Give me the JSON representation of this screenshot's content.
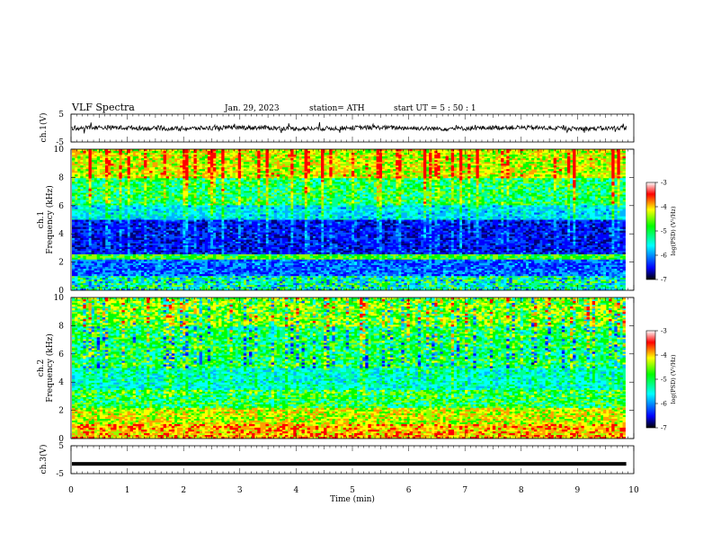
{
  "header": {
    "title": "VLF  Spectra",
    "date": "Jan. 29, 2023",
    "station": "station= ATH",
    "start": "start  UT  =   5  : 50 : 1"
  },
  "colors": {
    "low": "#000080",
    "mid_low": "#0000ff",
    "mid": "#00ffff",
    "mid_high": "#00ff00",
    "high": "#ffff00",
    "top": "#ff0000"
  },
  "chart_data": [
    {
      "type": "line",
      "name": "ch1-waveform",
      "ylabel": "ch.1(V)",
      "ylim": [
        -5,
        5
      ],
      "yticks": [
        "5",
        "-5"
      ],
      "xlim": [
        0,
        10
      ],
      "approx_level": 0,
      "approx_noise_amplitude": 1.5
    },
    {
      "type": "heatmap",
      "name": "ch1-spectrogram",
      "ylabel": "ch.1\nFrequency  (kHz)",
      "ylim": [
        0,
        10
      ],
      "yticks": [
        "0",
        "2",
        "4",
        "6",
        "8",
        "10"
      ],
      "xlim": [
        0,
        9.85
      ],
      "colorbar": {
        "label": "log(PSD) (V²/Hz)",
        "range": [
          -7,
          -3
        ],
        "ticks": [
          "-3",
          "-4",
          "-5",
          "-6",
          "-7"
        ]
      }
    },
    {
      "type": "heatmap",
      "name": "ch2-spectrogram",
      "ylabel": "ch.2\nFrequency  (kHz)",
      "ylim": [
        0,
        10
      ],
      "yticks": [
        "0",
        "2",
        "4",
        "6",
        "8",
        "10"
      ],
      "xlim": [
        0,
        9.85
      ],
      "colorbar": {
        "label": "log(PSD) (V²/Hz)",
        "range": [
          -7,
          -3
        ],
        "ticks": [
          "-3",
          "-4",
          "-5",
          "-6",
          "-7"
        ]
      }
    },
    {
      "type": "line",
      "name": "ch3-waveform",
      "ylabel": "ch.3(V)",
      "ylim": [
        -5,
        5
      ],
      "yticks": [
        "5",
        "-5"
      ],
      "xlim": [
        0,
        10
      ],
      "approx_level": -1.5,
      "xlabel": "Time  (min)",
      "xticks": [
        "0",
        "1",
        "2",
        "3",
        "4",
        "5",
        "6",
        "7",
        "8",
        "9",
        "10"
      ]
    }
  ]
}
